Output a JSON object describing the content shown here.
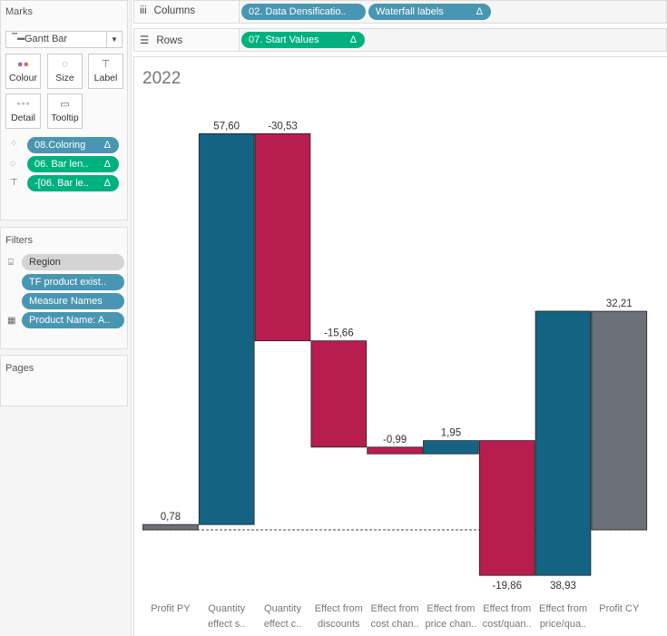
{
  "marks": {
    "title": "Marks",
    "mark_type": "Gantt Bar",
    "buttons": [
      "Colour",
      "Size",
      "Label",
      "Detail",
      "Tooltip"
    ],
    "pills": [
      {
        "label": "08.Coloring",
        "color": "blue"
      },
      {
        "label": "06. Bar len..",
        "color": "green"
      },
      {
        "label": "-[06. Bar le..",
        "color": "green"
      }
    ]
  },
  "filters": {
    "title": "Filters",
    "pills": [
      "Region",
      "TF product exist..",
      "Measure Names",
      "Product Name: A.."
    ]
  },
  "pages": {
    "title": "Pages"
  },
  "shelves": {
    "columns_label": "Columns",
    "columns": [
      "02. Data Densificatio..",
      "Waterfall labels"
    ],
    "rows_label": "Rows",
    "rows": [
      "07. Start Values"
    ]
  },
  "delta": "Δ",
  "chart_data": {
    "type": "waterfall",
    "title": "2022",
    "categories": [
      [
        "Profit PY",
        ""
      ],
      [
        "Quantity",
        "effect s.."
      ],
      [
        "Quantity",
        "effect c.."
      ],
      [
        "Effect from",
        "discounts"
      ],
      [
        "Effect from",
        "cost chan.."
      ],
      [
        "Effect from",
        "price chan.."
      ],
      [
        "Effect from",
        "cost/quan.."
      ],
      [
        "Effect from",
        "price/qua.."
      ],
      [
        "Profit CY",
        ""
      ]
    ],
    "values": [
      0.78,
      57.6,
      -30.53,
      -15.66,
      -0.99,
      1.95,
      -19.86,
      38.93,
      32.21
    ],
    "labels": [
      "0,78",
      "57,60",
      "-30,53",
      "-15,66",
      "-0,99",
      "1,95",
      "-19,86",
      "38,93",
      "32,21"
    ],
    "kinds": [
      "total",
      "increase",
      "decrease",
      "decrease",
      "decrease",
      "increase",
      "decrease",
      "increase",
      "total"
    ],
    "colors": {
      "total": "#6b7079",
      "increase": "#146382",
      "decrease": "#b81d50"
    },
    "zero_line": "dashed"
  }
}
